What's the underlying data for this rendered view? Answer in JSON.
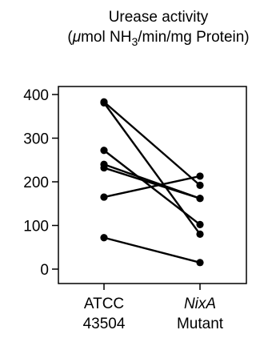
{
  "chart_data": {
    "type": "line",
    "title_line1": "Urease activity",
    "title_line2_prefix": "(",
    "title_mu": "μ",
    "title_line2_mid": "mol NH",
    "title_subscript": "3",
    "title_line2_suffix": "/min/mg Protein)",
    "categories": [
      {
        "line1": "ATCC",
        "line2": "43504",
        "italic": false
      },
      {
        "line1": "NixA",
        "line2": "Mutant",
        "italic": true
      }
    ],
    "ylim": [
      0,
      400
    ],
    "yticks": [
      0,
      100,
      200,
      300,
      400
    ],
    "grid": false,
    "legend": "none",
    "series": [
      {
        "values": [
          383,
          192
        ]
      },
      {
        "values": [
          381,
          80
        ]
      },
      {
        "values": [
          272,
          102
        ]
      },
      {
        "values": [
          240,
          162
        ]
      },
      {
        "values": [
          232,
          162
        ]
      },
      {
        "values": [
          165,
          213
        ]
      },
      {
        "values": [
          72,
          15
        ]
      }
    ]
  }
}
